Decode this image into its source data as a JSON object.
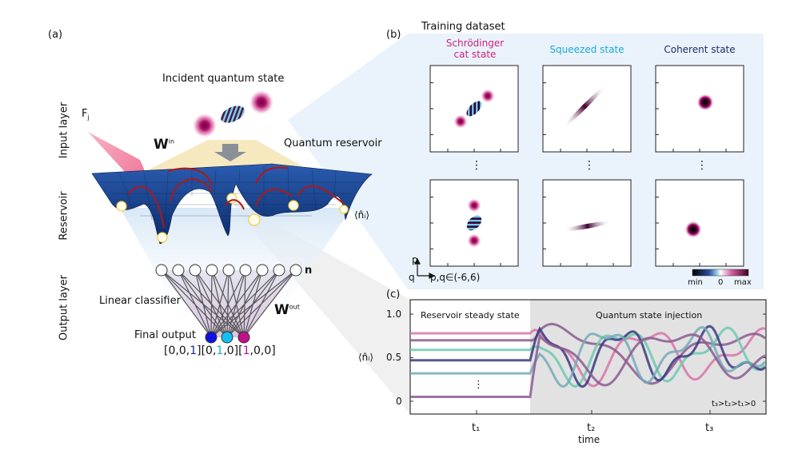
{
  "panel_labels": {
    "a": "(a)",
    "b": "(b)",
    "c": "(c)"
  },
  "panel_a": {
    "layer_labels": [
      "Input  layer",
      "Reservoir",
      "Output layer"
    ],
    "incident_state": "Incident quantum state",
    "field_label": "F",
    "field_sub": "j",
    "w_in": "W",
    "w_in_sup": "in",
    "quantum_reservoir": "Quantum reservoir",
    "occupation": "⟨n̂ᵢ⟩",
    "n_label": "n",
    "linear_classifier": "Linear classifier",
    "w_out": "W",
    "w_out_sup": "out",
    "final_output": "Final output",
    "output_colors": [
      "#1010e0",
      "#10c0f0",
      "#c0108a"
    ],
    "outputs": [
      {
        "parts": [
          "[0,0,",
          "1",
          "]"
        ],
        "color": "#1a2a8a"
      },
      {
        "parts": [
          "[0,",
          "1",
          ",0]"
        ],
        "color": "#10b0e0"
      },
      {
        "parts": [
          "[",
          "1",
          ",0,0]"
        ],
        "color": "#b010a0"
      }
    ]
  },
  "panel_b": {
    "title": "Training dataset",
    "columns": [
      {
        "title": "Schrödinger\ncat state",
        "color": "#d0207f"
      },
      {
        "title": "Squeezed state",
        "color": "#18a8d8"
      },
      {
        "title": "Coherent state",
        "color": "#1c2c66"
      }
    ],
    "ellipsis": "⋮",
    "axis_p": "p",
    "axis_q": "q",
    "range": "p,q∈(-6,6)",
    "colorbar": {
      "min": "min",
      "zero": "0",
      "max": "max"
    }
  },
  "panel_c": {
    "ylabel": "⟨n̂ᵢ⟩",
    "yticks": [
      "1.0",
      "0.5",
      "0"
    ],
    "xticks": [
      "t₁",
      "t₂",
      "t₃"
    ],
    "xlabel": "time",
    "region_left": "Reservoir steady state",
    "region_right": "Quantum state injection",
    "ordering": "t₃>t₂>t₁>0",
    "ellipsis": "⋮",
    "ylim": [
      0,
      1.1
    ],
    "series": [
      {
        "color": "#d874a8",
        "steady": 0.78
      },
      {
        "color": "#8a5a8e",
        "steady": 0.7
      },
      {
        "color": "#6cc8b0",
        "steady": 0.59
      },
      {
        "color": "#3a3a80",
        "steady": 0.47
      },
      {
        "color": "#74aab8",
        "steady": 0.32
      },
      {
        "color": "#8a5a90",
        "steady": 0.05
      }
    ]
  }
}
